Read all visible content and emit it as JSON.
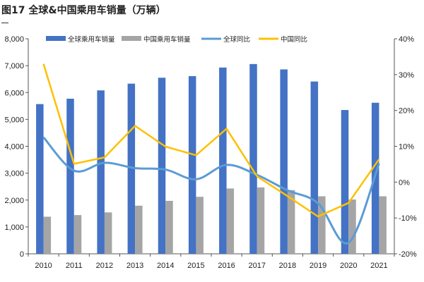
{
  "title": "图17 全球&中国乘用车销量（万辆）",
  "chart_data": {
    "type": "bar+line",
    "title": "图17 全球&中国乘用车销量（万辆）",
    "categories": [
      "2010",
      "2011",
      "2012",
      "2013",
      "2014",
      "2015",
      "2016",
      "2017",
      "2018",
      "2019",
      "2020",
      "2021"
    ],
    "left_axis": {
      "ylim": [
        0,
        8000
      ],
      "ticks": [
        "0",
        "1,000",
        "2,000",
        "3,000",
        "4,000",
        "5,000",
        "6,000",
        "7,000",
        "8,000"
      ]
    },
    "right_axis": {
      "ylim": [
        -20,
        40
      ],
      "ticks": [
        "-20%",
        "-10%",
        "0%",
        "10%",
        "20%",
        "30%",
        "40%"
      ]
    },
    "grid": false,
    "legend": "top",
    "series": [
      {
        "name": "全球乘用车销量",
        "type": "bar",
        "axis": "left",
        "color": "#4472C4",
        "values": [
          5570,
          5770,
          6080,
          6330,
          6550,
          6610,
          6930,
          7060,
          6860,
          6410,
          5350,
          5620
        ]
      },
      {
        "name": "中国乘用车销量",
        "type": "bar",
        "axis": "left",
        "color": "#A5A5A5",
        "values": [
          1380,
          1440,
          1540,
          1790,
          1970,
          2120,
          2430,
          2470,
          2370,
          2140,
          2020,
          2140
        ]
      },
      {
        "name": "全球同比",
        "type": "line",
        "smooth": true,
        "axis": "right",
        "color": "#5B9BD5",
        "values": [
          12.5,
          3.2,
          5.4,
          3.9,
          3.5,
          0.8,
          4.8,
          2.0,
          -2.3,
          -5.9,
          -16.9,
          5.2
        ]
      },
      {
        "name": "中国同比",
        "type": "line",
        "smooth": false,
        "axis": "right",
        "color": "#FFC000",
        "values": [
          33.0,
          5.1,
          6.9,
          15.7,
          9.9,
          7.5,
          14.9,
          1.6,
          -3.9,
          -9.6,
          -5.8,
          6.4
        ]
      }
    ]
  }
}
